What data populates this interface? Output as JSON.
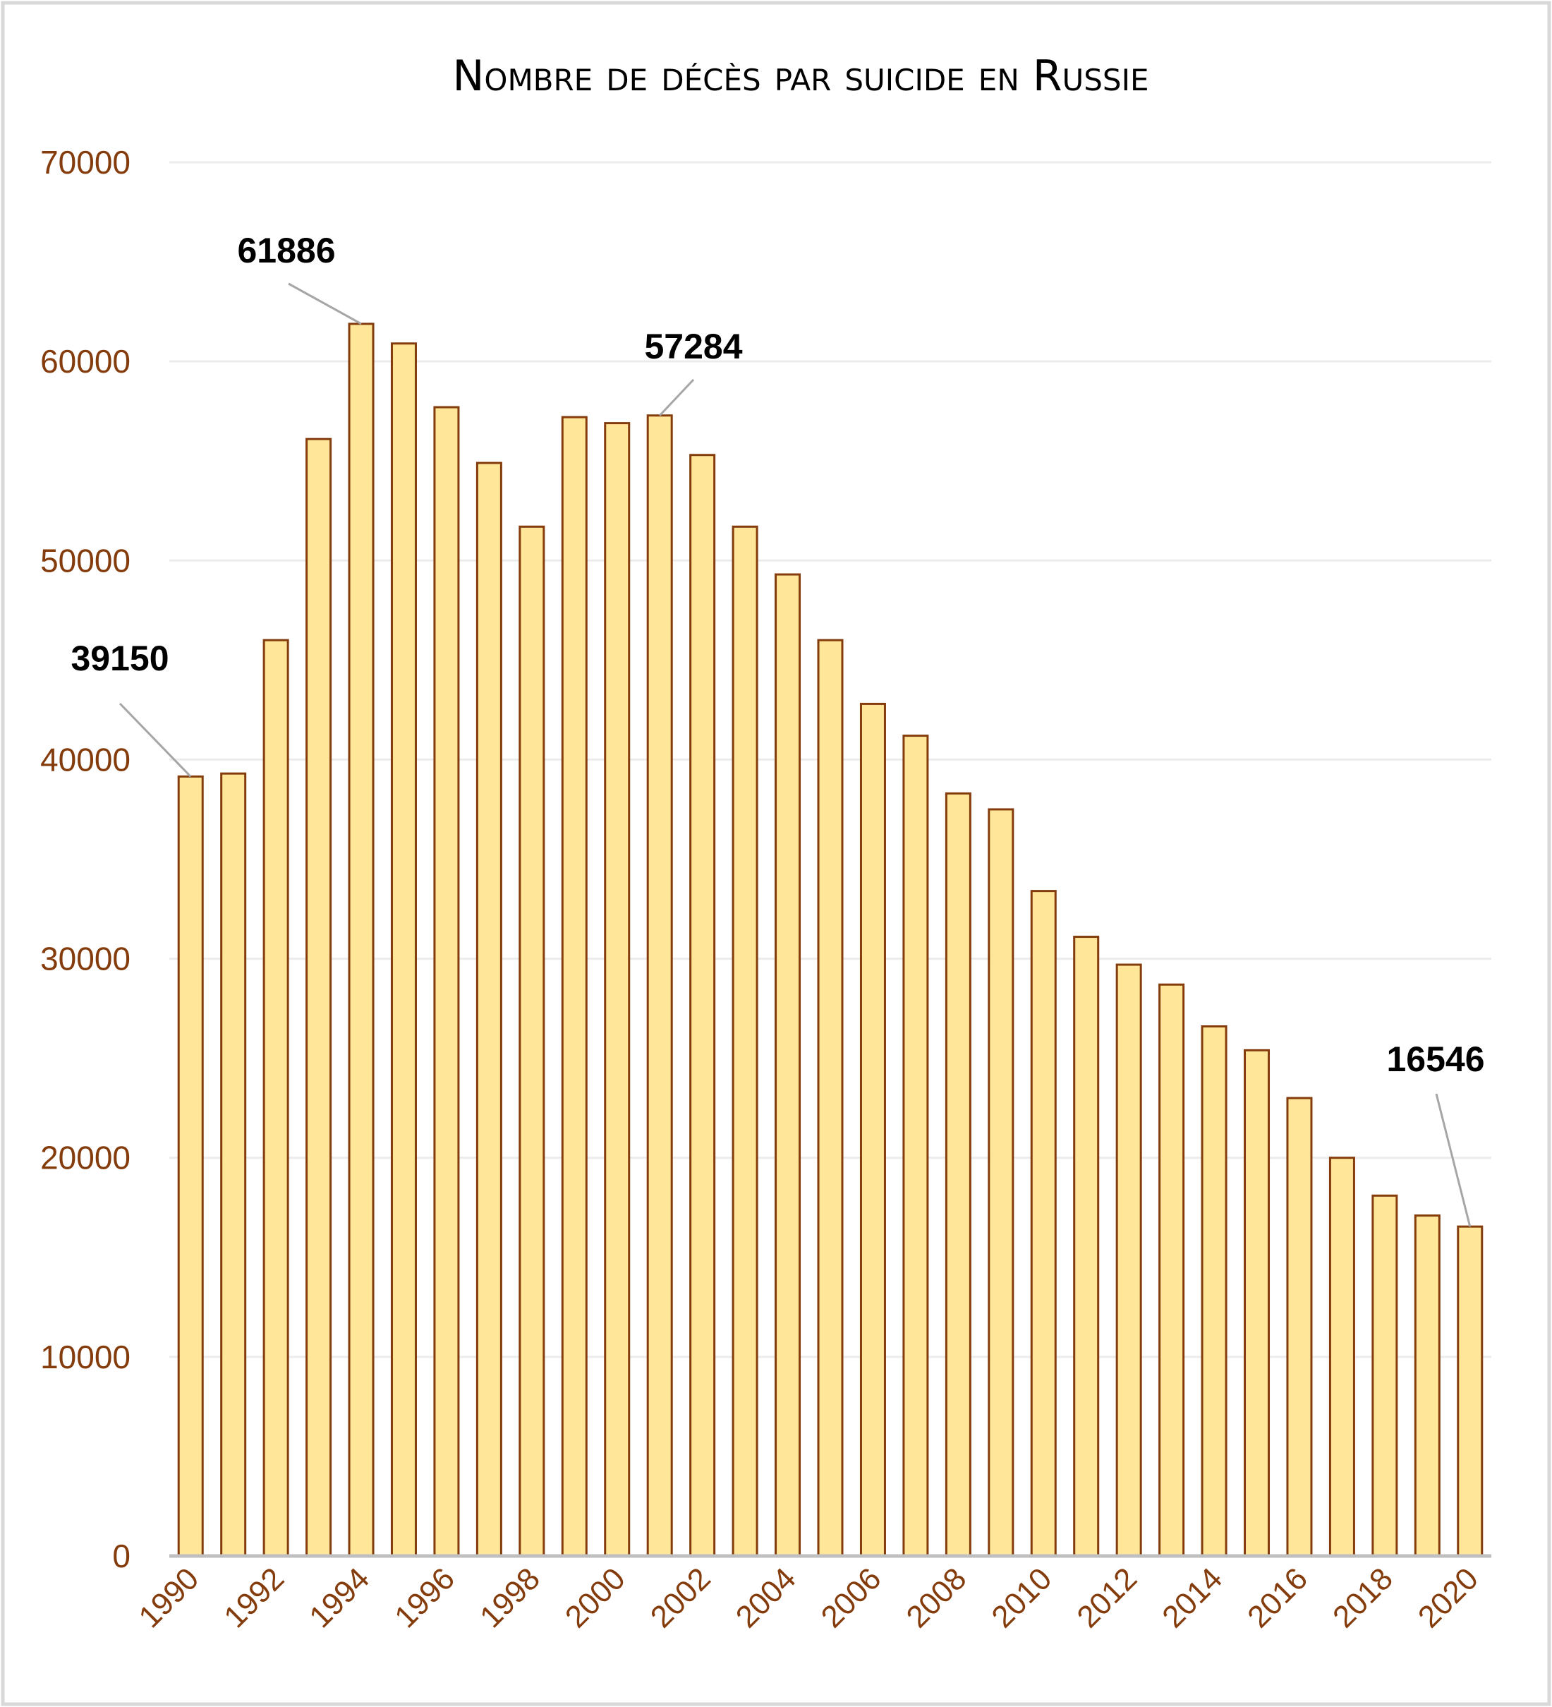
{
  "chart_data": {
    "type": "bar",
    "title": "Nombre de décès par suicide en Russie",
    "xlabel": "",
    "ylabel": "",
    "ylim": [
      0,
      70000
    ],
    "yticks": [
      0,
      10000,
      20000,
      30000,
      40000,
      50000,
      60000,
      70000
    ],
    "grid": true,
    "categories": [
      1990,
      1991,
      1992,
      1993,
      1994,
      1995,
      1996,
      1997,
      1998,
      1999,
      2000,
      2001,
      2002,
      2003,
      2004,
      2005,
      2006,
      2007,
      2008,
      2009,
      2010,
      2011,
      2012,
      2013,
      2014,
      2015,
      2016,
      2017,
      2018,
      2019,
      2020
    ],
    "xtick_labels": [
      "1990",
      "1992",
      "1994",
      "1996",
      "1998",
      "2000",
      "2002",
      "2004",
      "2006",
      "2008",
      "2010",
      "2012",
      "2014",
      "2016",
      "2018",
      "2020"
    ],
    "values": [
      39150,
      39300,
      46000,
      56100,
      61886,
      60900,
      57700,
      54900,
      51700,
      57200,
      56900,
      57284,
      55300,
      51700,
      49300,
      46000,
      42800,
      41200,
      38300,
      37500,
      33400,
      31100,
      29700,
      28700,
      26600,
      25400,
      23000,
      20000,
      18100,
      17100,
      16546
    ],
    "annotations": [
      {
        "year": 1990,
        "text": "39150"
      },
      {
        "year": 1994,
        "text": "61886"
      },
      {
        "year": 2001,
        "text": "57284"
      },
      {
        "year": 2020,
        "text": "16546"
      }
    ],
    "colors": {
      "bar_fill": "#ffe699",
      "bar_stroke": "#843c0c",
      "tick_text": "#843c0c",
      "grid": "#ececec",
      "axis": "#bfbfbf",
      "leader": "#a6a6a6"
    }
  }
}
